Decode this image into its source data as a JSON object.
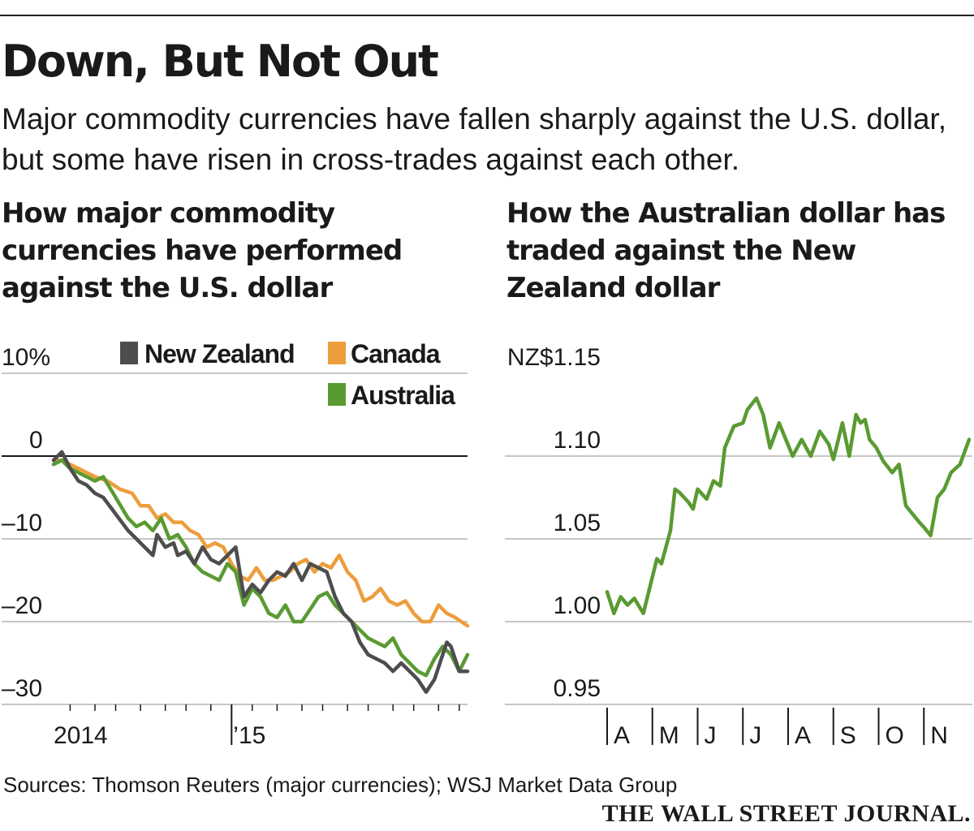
{
  "headline": "Down, But Not Out",
  "subhead": "Major commodity currencies have fallen sharply against the U.S. dollar, but some have risen in cross-trades against each other.",
  "source": "Sources: Thomson Reuters (major currencies); WSJ Market Data Group",
  "brand": "THE WALL STREET JOURNAL.",
  "colors": {
    "new_zealand": "#4d4d4f",
    "canada": "#ec9e3c",
    "australia": "#5a9a32",
    "gridline": "#b3b3b3",
    "zero_line": "#1a1a1a"
  },
  "chart_data": [
    {
      "type": "line",
      "title": "How major commodity currencies have performed against the U.S. dollar",
      "xlabel": "",
      "ylabel": "",
      "x_tick_labels": [
        "2014",
        "’15"
      ],
      "xlim": [
        0,
        100
      ],
      "x_ticks": [
        4,
        10,
        15,
        21,
        27,
        32,
        38,
        43,
        48,
        54,
        60,
        65,
        71,
        76,
        82,
        87,
        93,
        98
      ],
      "x_year_break": 43,
      "ylim": [
        -30,
        10
      ],
      "y_ticks": [
        10,
        0,
        -10,
        -20,
        -30
      ],
      "y_tick_labels": [
        "10%",
        "0",
        "–10",
        "–20",
        "–30"
      ],
      "legend": [
        {
          "key": "new_zealand",
          "label": "New Zealand"
        },
        {
          "key": "canada",
          "label": "Canada"
        },
        {
          "key": "australia",
          "label": "Australia"
        }
      ],
      "series": [
        {
          "name": "New Zealand",
          "key": "new_zealand",
          "x": [
            0,
            2,
            4,
            6,
            8,
            10,
            12,
            15,
            18,
            20,
            22,
            24,
            25,
            27,
            29,
            30,
            32,
            34,
            36,
            38,
            40,
            42,
            44,
            46,
            48,
            50,
            52,
            54,
            56,
            58,
            60,
            62,
            64,
            66,
            68,
            70,
            72,
            74,
            76,
            78,
            80,
            82,
            84,
            86,
            88,
            90,
            92,
            94,
            95,
            96,
            98,
            100
          ],
          "values": [
            -0.5,
            0.5,
            -1.5,
            -3,
            -3.5,
            -4.5,
            -5,
            -7,
            -9,
            -10,
            -11,
            -12,
            -9.5,
            -11,
            -10.5,
            -12,
            -11.5,
            -13,
            -11,
            -12.5,
            -13,
            -12,
            -11,
            -17,
            -15.5,
            -16.5,
            -15,
            -14,
            -14.5,
            -13,
            -15,
            -13,
            -13.5,
            -14,
            -17,
            -19,
            -20,
            -22.5,
            -24,
            -24.5,
            -25,
            -26,
            -25,
            -26,
            -27,
            -28.5,
            -27,
            -24,
            -22.5,
            -23,
            -26,
            -26
          ]
        },
        {
          "name": "Canada",
          "key": "canada",
          "x": [
            0,
            2,
            4,
            6,
            8,
            10,
            13,
            16,
            19,
            21,
            23,
            25,
            27,
            29,
            31,
            33,
            35,
            37,
            39,
            41,
            43,
            45,
            47,
            49,
            51,
            53,
            55,
            57,
            59,
            61,
            63,
            65,
            67,
            69,
            71,
            73,
            75,
            77,
            79,
            81,
            83,
            85,
            87,
            89,
            91,
            93,
            95,
            97,
            100
          ],
          "values": [
            -0.5,
            -0.5,
            -1,
            -1.5,
            -2,
            -2.5,
            -3,
            -4,
            -4.5,
            -6,
            -6,
            -7.5,
            -7,
            -8,
            -8,
            -9,
            -9.5,
            -11,
            -10.5,
            -11,
            -13,
            -14.5,
            -15,
            -13.5,
            -15,
            -15,
            -14.5,
            -14,
            -13,
            -12.5,
            -14,
            -13,
            -13.5,
            -12,
            -14,
            -15,
            -17.5,
            -17,
            -16,
            -17.5,
            -18,
            -17.5,
            -19,
            -20,
            -20,
            -18,
            -19,
            -19.5,
            -20.5
          ]
        },
        {
          "name": "Australia",
          "key": "australia",
          "x": [
            0,
            2,
            4,
            6,
            8,
            10,
            12,
            15,
            18,
            20,
            22,
            24,
            26,
            28,
            30,
            32,
            34,
            36,
            38,
            40,
            42,
            44,
            46,
            48,
            50,
            52,
            54,
            56,
            58,
            60,
            62,
            64,
            66,
            68,
            70,
            72,
            74,
            76,
            78,
            80,
            82,
            84,
            86,
            88,
            90,
            92,
            94,
            96,
            98,
            100
          ],
          "values": [
            -1,
            -0.5,
            -1.5,
            -2,
            -2.5,
            -3,
            -2.5,
            -5,
            -7.5,
            -8.5,
            -8,
            -9,
            -7.5,
            -10,
            -9.5,
            -11,
            -13,
            -14,
            -14.5,
            -15,
            -13,
            -14,
            -18,
            -16,
            -17,
            -19,
            -19.5,
            -18,
            -20,
            -20,
            -18.5,
            -17,
            -16.5,
            -18,
            -19,
            -20,
            -21,
            -22,
            -22.5,
            -23,
            -22,
            -24,
            -25,
            -26,
            -26.5,
            -24.5,
            -23,
            -24,
            -26,
            -24
          ]
        }
      ]
    },
    {
      "type": "line",
      "title": "How the Australian dollar has traded against the New Zealand dollar",
      "xlabel": "",
      "ylabel": "",
      "x_tick_labels": [
        "A",
        "M",
        "J",
        "J",
        "A",
        "S",
        "O",
        "N"
      ],
      "xlim": [
        0,
        8
      ],
      "ylim": [
        0.95,
        1.15
      ],
      "y_ticks": [
        1.15,
        1.1,
        1.05,
        1.0,
        0.95
      ],
      "y_tick_labels": [
        "NZ$1.15",
        "1.10",
        "1.05",
        "1.00",
        "0.95"
      ],
      "series": [
        {
          "name": "Australian dollar in NZ$",
          "key": "australia",
          "x": [
            0,
            0.15,
            0.3,
            0.45,
            0.6,
            0.8,
            1.0,
            1.1,
            1.2,
            1.4,
            1.5,
            1.6,
            1.8,
            1.9,
            2.0,
            2.2,
            2.35,
            2.5,
            2.6,
            2.8,
            3.0,
            3.1,
            3.3,
            3.45,
            3.6,
            3.8,
            3.95,
            4.1,
            4.3,
            4.5,
            4.7,
            4.9,
            5.0,
            5.2,
            5.35,
            5.5,
            5.6,
            5.7,
            5.8,
            5.95,
            6.1,
            6.3,
            6.45,
            6.6,
            6.75,
            6.9,
            7.0,
            7.15,
            7.3,
            7.45,
            7.6,
            7.8,
            8.0
          ],
          "values": [
            1.018,
            1.005,
            1.015,
            1.01,
            1.014,
            1.005,
            1.027,
            1.038,
            1.035,
            1.055,
            1.08,
            1.078,
            1.072,
            1.068,
            1.08,
            1.074,
            1.085,
            1.082,
            1.105,
            1.118,
            1.12,
            1.128,
            1.135,
            1.125,
            1.105,
            1.12,
            1.11,
            1.1,
            1.11,
            1.1,
            1.115,
            1.107,
            1.098,
            1.12,
            1.1,
            1.125,
            1.12,
            1.122,
            1.11,
            1.105,
            1.097,
            1.09,
            1.095,
            1.07,
            1.065,
            1.06,
            1.057,
            1.052,
            1.075,
            1.08,
            1.09,
            1.095,
            1.11
          ]
        }
      ]
    }
  ]
}
